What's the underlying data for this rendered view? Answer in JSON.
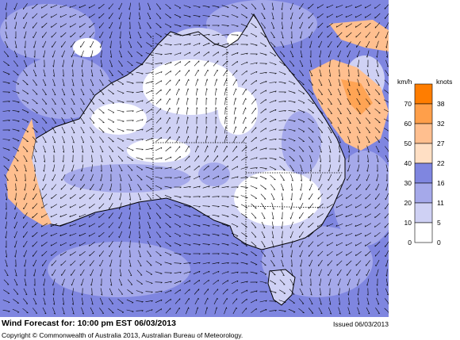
{
  "map": {
    "ocean_color": "#7f86e0",
    "land_outline_color": "#000000",
    "arrow_color": "#000000",
    "features": [
      "australia-coastline",
      "state-borders",
      "tasmania",
      "wind-arrows",
      "wind-speed-shading"
    ]
  },
  "legend": {
    "left_unit": "km/h",
    "right_unit": "knots",
    "colors": [
      "#ff7d00",
      "#ff9f4a",
      "#ffbf8f",
      "#ffdfc4",
      "#7f86e0",
      "#a5a9ea",
      "#cfd1f4",
      "#ffffff"
    ],
    "kmh_labels": [
      "70",
      "60",
      "50",
      "40",
      "30",
      "20",
      "10",
      "0"
    ],
    "knot_labels": [
      "38",
      "32",
      "27",
      "22",
      "16",
      "11",
      "5",
      "0"
    ]
  },
  "footer": {
    "forecast_label": "Wind Forecast for: 10:00 pm EST 06/03/2013",
    "issued": "Issued 06/03/2013",
    "copyright": "Copyright © Commonwealth of Australia 2013, Australian Bureau of Meteorology."
  }
}
